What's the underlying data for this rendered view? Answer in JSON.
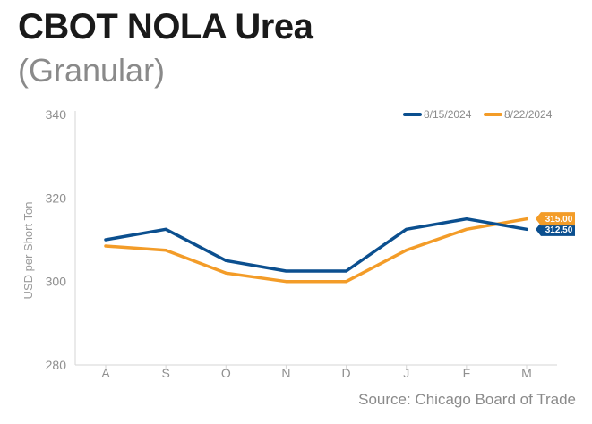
{
  "header": {
    "title": "CBOT NOLA Urea",
    "subtitle": "(Granular)"
  },
  "footer": {
    "source": "Source: Chicago Board of Trade"
  },
  "colors": {
    "series_1": "#0b4f8f",
    "series_2": "#f39c28",
    "axis": "#d6d6d6"
  },
  "chart_data": {
    "type": "line",
    "title": "CBOT NOLA Urea",
    "subtitle": "(Granular)",
    "xlabel": "",
    "ylabel": "USD per Short Ton",
    "categories": [
      "A",
      "S",
      "O",
      "N",
      "D",
      "J",
      "F",
      "M"
    ],
    "ylim": [
      280,
      340
    ],
    "yticks": [
      280,
      300,
      320,
      340
    ],
    "grid": false,
    "legend_position": "top-right",
    "series": [
      {
        "name": "8/15/2024",
        "color": "#0b4f8f",
        "values": [
          310,
          312.5,
          305,
          302.5,
          302.5,
          312.5,
          315,
          312.5
        ],
        "end_label": "312.50"
      },
      {
        "name": "8/22/2024",
        "color": "#f39c28",
        "values": [
          308.5,
          307.5,
          302,
          300,
          300,
          307.5,
          312.5,
          315
        ],
        "end_label": "315.00"
      }
    ]
  }
}
